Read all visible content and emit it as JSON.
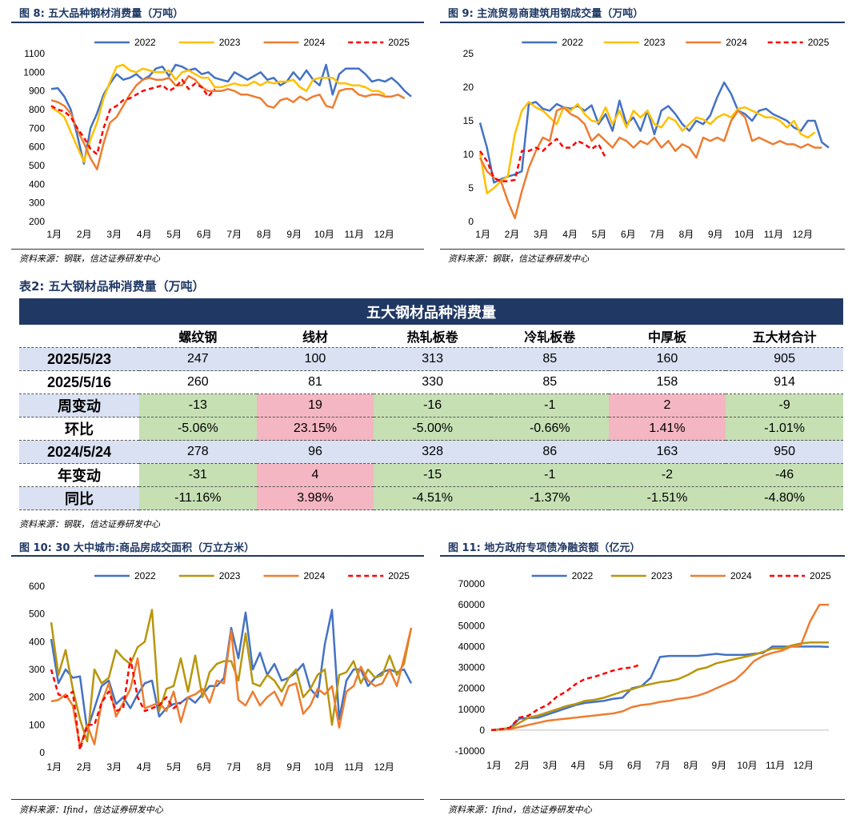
{
  "fig8": {
    "title": "图 8:  五大品种钢材消费量（万吨）",
    "source": "资料来源：钢联，信达证券研发中心"
  },
  "fig9": {
    "title": "图 9:  主流贸易商建筑用钢成交量（万吨）",
    "source": "资料来源：钢联，信达证券研发中心"
  },
  "fig10": {
    "title": "图 10:  30 大中城市:商品房成交面积（万立方米）",
    "source": "资料来源：Ifind，信达证券研发中心"
  },
  "fig11": {
    "title": "图 11:  地方政府专项债净融资额（亿元）",
    "source": "资料来源：Ifind，信达证券研发中心"
  },
  "table2": {
    "caption": "表2:  五大钢材品种消费量（万吨）",
    "title": "五大钢材品种消费量",
    "columns": [
      "螺纹钢",
      "线材",
      "热轧板卷",
      "冷轧板卷",
      "中厚板",
      "五大材合计"
    ],
    "rows": [
      {
        "label": "2025/5/23",
        "cells": [
          "247",
          "100",
          "313",
          "85",
          "160",
          "905"
        ]
      },
      {
        "label": "2025/5/16",
        "cells": [
          "260",
          "81",
          "330",
          "85",
          "158",
          "914"
        ]
      },
      {
        "label": "周变动",
        "cells": [
          "-13",
          "19",
          "-16",
          "-1",
          "2",
          "-9"
        ]
      },
      {
        "label": "环比",
        "cells": [
          "-5.06%",
          "23.15%",
          "-5.00%",
          "-0.66%",
          "1.41%",
          "-1.01%"
        ]
      },
      {
        "label": "2024/5/24",
        "cells": [
          "278",
          "96",
          "328",
          "86",
          "163",
          "950"
        ]
      },
      {
        "label": "年变动",
        "cells": [
          "-31",
          "4",
          "-15",
          "-1",
          "-2",
          "-46"
        ]
      },
      {
        "label": "同比",
        "cells": [
          "-11.16%",
          "3.98%",
          "-4.51%",
          "-1.37%",
          "-1.51%",
          "-4.80%"
        ]
      }
    ],
    "source": "资料来源：钢联，信达证券研发中心",
    "colors": {
      "header": "#203864",
      "date_row": "#d9e1f2",
      "decrease": "#c6e0b4",
      "increase": "#f4b6c2"
    }
  },
  "chart_data": [
    {
      "id": "fig8",
      "type": "line",
      "x_labels": [
        "1月",
        "2月",
        "3月",
        "4月",
        "5月",
        "6月",
        "7月",
        "8月",
        "9月",
        "10月",
        "11月",
        "12月"
      ],
      "ylim": [
        200,
        1100
      ],
      "yticks": [
        200,
        300,
        400,
        500,
        600,
        700,
        800,
        900,
        1000,
        1100
      ],
      "grid": false,
      "legend": "top",
      "series": [
        {
          "name": "2022",
          "color": "#4472c4",
          "dash": false,
          "values": [
            910,
            915,
            870,
            800,
            660,
            510,
            700,
            780,
            880,
            940,
            990,
            960,
            970,
            990,
            960,
            980,
            1020,
            1030,
            980,
            1040,
            1030,
            1010,
            1020,
            990,
            1000,
            970,
            960,
            950,
            1000,
            980,
            960,
            980,
            1000,
            960,
            970,
            930,
            950,
            1000,
            960,
            1010,
            960,
            930,
            1040,
            880,
            990,
            1020,
            1020,
            1020,
            990,
            950,
            960,
            950,
            970,
            940,
            900,
            870
          ]
        },
        {
          "name": "2023",
          "color": "#ffc000",
          "dash": false,
          "values": [
            810,
            790,
            760,
            680,
            600,
            520,
            640,
            730,
            860,
            950,
            1030,
            1040,
            1010,
            1000,
            1020,
            1010,
            1000,
            1000,
            1010,
            960,
            1000,
            1010,
            990,
            970,
            970,
            920,
            920,
            930,
            940,
            930,
            930,
            950,
            930,
            950,
            940,
            950,
            950,
            960,
            920,
            900,
            960,
            970,
            970,
            970,
            940,
            940,
            930,
            930,
            920,
            900,
            900,
            880
          ]
        },
        {
          "name": "2024",
          "color": "#ed7d31",
          "dash": false,
          "values": [
            850,
            840,
            820,
            780,
            690,
            620,
            540,
            480,
            620,
            730,
            760,
            820,
            880,
            930,
            960,
            970,
            960,
            960,
            970,
            930,
            930,
            980,
            960,
            920,
            900,
            900,
            900,
            910,
            900,
            880,
            880,
            870,
            860,
            820,
            810,
            850,
            860,
            840,
            870,
            850,
            870,
            880,
            820,
            810,
            900,
            910,
            910,
            880,
            870,
            880,
            880,
            870,
            870,
            880,
            860
          ]
        },
        {
          "name": "2025",
          "color": "#ff0000",
          "dash": true,
          "values": [
            820,
            800,
            790,
            760,
            700,
            650,
            590,
            560,
            700,
            800,
            820,
            850,
            860,
            880,
            900,
            910,
            920,
            930,
            900,
            920,
            960,
            910,
            940,
            920,
            870,
            910
          ]
        }
      ]
    },
    {
      "id": "fig9",
      "type": "line",
      "x_labels": [
        "1月",
        "2月",
        "3月",
        "4月",
        "5月",
        "6月",
        "7月",
        "8月",
        "9月",
        "10月",
        "11月",
        "12月"
      ],
      "ylim": [
        0,
        25
      ],
      "yticks": [
        0,
        5,
        10,
        15,
        20,
        25
      ],
      "grid": false,
      "legend": "top",
      "series": [
        {
          "name": "2022",
          "color": "#4472c4",
          "dash": false,
          "values": [
            14.7,
            11.0,
            5.8,
            6.3,
            6.7,
            7.0,
            7.5,
            17.5,
            17.8,
            16.8,
            16.5,
            17.5,
            17.0,
            16.8,
            17.2,
            16.5,
            17.3,
            14.5,
            16.0,
            13.5,
            18.0,
            14.5,
            15.5,
            13.5,
            16.5,
            13.0,
            16.5,
            17.2,
            16.0,
            14.5,
            13.5,
            15.0,
            14.5,
            15.8,
            18.5,
            20.7,
            19.0,
            16.5,
            16.0,
            15.0,
            16.5,
            16.8,
            16.0,
            15.5,
            15.0,
            14.0,
            13.5,
            15.0,
            15.0,
            11.8,
            11.0
          ]
        },
        {
          "name": "2023",
          "color": "#ffc000",
          "dash": false,
          "values": [
            10.2,
            4.2,
            5.0,
            6.0,
            6.8,
            13.0,
            16.5,
            17.8,
            17.0,
            16.5,
            15.5,
            14.5,
            17.0,
            16.5,
            17.5,
            16.0,
            15.0,
            14.8,
            17.0,
            14.5,
            16.5,
            14.0,
            16.5,
            15.5,
            16.5,
            14.5,
            14.0,
            15.5,
            15.0,
            13.5,
            14.5,
            15.5,
            15.2,
            14.5,
            15.5,
            16.0,
            15.5,
            16.8,
            17.0,
            16.5,
            16.0,
            15.5,
            15.5,
            15.0,
            14.0,
            15.0,
            13.0,
            12.5,
            13.3
          ]
        },
        {
          "name": "2024",
          "color": "#ed7d31",
          "dash": false,
          "values": [
            9.5,
            7.5,
            6.5,
            6.0,
            3.0,
            0.5,
            4.5,
            8.0,
            10.5,
            12.5,
            12.0,
            16.5,
            17.0,
            16.0,
            15.5,
            14.5,
            12.0,
            13.0,
            12.0,
            11.0,
            12.5,
            12.0,
            11.0,
            12.0,
            11.5,
            12.5,
            11.0,
            12.0,
            10.5,
            11.5,
            11.0,
            9.5,
            12.5,
            12.0,
            12.5,
            12.0,
            15.0,
            16.5,
            15.5,
            12.0,
            12.5,
            12.0,
            11.5,
            12.0,
            11.5,
            11.5,
            11.0,
            11.5,
            11.0,
            11.0
          ]
        },
        {
          "name": "2025",
          "color": "#ff0000",
          "dash": true,
          "values": [
            10.5,
            9.0,
            6.5,
            6.0,
            6.0,
            6.2,
            10.5,
            10.5,
            11.0,
            10.5,
            11.5,
            12.3,
            11.0,
            11.0,
            12.0,
            11.5,
            10.8,
            11.5,
            9.5
          ]
        }
      ]
    },
    {
      "id": "fig10",
      "type": "line",
      "x_labels": [
        "1月",
        "2月",
        "3月",
        "4月",
        "5月",
        "6月",
        "7月",
        "8月",
        "9月",
        "10月",
        "11月",
        "12月"
      ],
      "ylim": [
        0,
        600
      ],
      "yticks": [
        0,
        100,
        200,
        300,
        400,
        500,
        600
      ],
      "grid": false,
      "legend": "top",
      "series": [
        {
          "name": "2022",
          "color": "#4472c4",
          "dash": false,
          "values": [
            410,
            250,
            300,
            270,
            275,
            80,
            160,
            240,
            260,
            175,
            200,
            160,
            210,
            250,
            260,
            130,
            160,
            175,
            180,
            200,
            180,
            210,
            240,
            240,
            270,
            450,
            340,
            505,
            300,
            360,
            280,
            320,
            260,
            270,
            290,
            320,
            230,
            200,
            390,
            515,
            120,
            260,
            300,
            300,
            240,
            270,
            290,
            300,
            290,
            300,
            250
          ]
        },
        {
          "name": "2023",
          "color": "#b8960c",
          "dash": false,
          "values": [
            470,
            280,
            370,
            230,
            120,
            40,
            300,
            250,
            270,
            370,
            340,
            320,
            380,
            400,
            515,
            150,
            230,
            240,
            340,
            220,
            350,
            200,
            290,
            320,
            330,
            330,
            260,
            430,
            250,
            240,
            280,
            260,
            220,
            270,
            300,
            200,
            230,
            280,
            300,
            100,
            280,
            290,
            330,
            250,
            300,
            270,
            280,
            350,
            280,
            320,
            450
          ]
        },
        {
          "name": "2024",
          "color": "#ed7d31",
          "dash": false,
          "values": [
            185,
            190,
            210,
            170,
            20,
            100,
            30,
            180,
            250,
            130,
            180,
            230,
            340,
            160,
            170,
            180,
            150,
            220,
            110,
            200,
            210,
            230,
            180,
            260,
            250,
            440,
            190,
            170,
            220,
            170,
            200,
            220,
            170,
            240,
            250,
            140,
            170,
            230,
            210,
            240,
            90,
            220,
            240,
            310,
            260,
            240,
            250,
            300,
            240,
            340,
            450
          ]
        },
        {
          "name": "2025",
          "color": "#ff0000",
          "dash": true,
          "values": [
            300,
            210,
            200,
            220,
            10,
            100,
            100,
            180,
            220,
            150,
            160,
            340,
            200,
            150,
            160,
            170,
            200,
            160,
            180
          ]
        }
      ]
    },
    {
      "id": "fig11",
      "type": "line",
      "x_labels": [
        "1月",
        "2月",
        "3月",
        "4月",
        "5月",
        "6月",
        "7月",
        "8月",
        "9月",
        "10月",
        "11月",
        "12月"
      ],
      "ylim": [
        -10000,
        70000
      ],
      "yticks": [
        -10000,
        0,
        10000,
        20000,
        30000,
        40000,
        50000,
        60000,
        70000
      ],
      "grid": false,
      "legend": "top",
      "series": [
        {
          "name": "2022",
          "color": "#4472c4",
          "dash": false,
          "values": [
            0,
            500,
            1000,
            5500,
            5800,
            6000,
            7500,
            9000,
            10500,
            12000,
            13000,
            13500,
            14000,
            15000,
            15500,
            20000,
            21000,
            25000,
            35000,
            35500,
            35500,
            35500,
            35500,
            36000,
            36500,
            36000,
            36000,
            36000,
            36500,
            37000,
            40000,
            40000,
            40000,
            40000,
            40000,
            40000,
            39800
          ]
        },
        {
          "name": "2023",
          "color": "#b8960c",
          "dash": false,
          "values": [
            0,
            300,
            800,
            3500,
            6000,
            7000,
            8500,
            10000,
            11500,
            12500,
            14000,
            14500,
            15500,
            17000,
            18500,
            19500,
            21000,
            22000,
            23000,
            23500,
            24500,
            26500,
            29000,
            30000,
            32000,
            33000,
            34000,
            35000,
            36000,
            37500,
            39000,
            39000,
            40500,
            41500,
            42000,
            42000,
            42000
          ]
        },
        {
          "name": "2024",
          "color": "#ed7d31",
          "dash": false,
          "values": [
            0,
            200,
            500,
            1500,
            2500,
            3500,
            4500,
            5000,
            5500,
            6000,
            6500,
            7000,
            7500,
            8000,
            9000,
            11000,
            12000,
            12500,
            13500,
            14000,
            15000,
            15500,
            16500,
            18000,
            20000,
            22000,
            24000,
            28000,
            33000,
            35500,
            37000,
            38000,
            40000,
            40500,
            52000,
            60000,
            60000
          ]
        },
        {
          "name": "2025",
          "color": "#ff0000",
          "dash": true,
          "values": [
            0,
            400,
            1200,
            6000,
            7000,
            10000,
            12000,
            16000,
            18500,
            22000,
            24500,
            25500,
            27000,
            28500,
            29500,
            30000,
            31500
          ]
        }
      ]
    }
  ]
}
